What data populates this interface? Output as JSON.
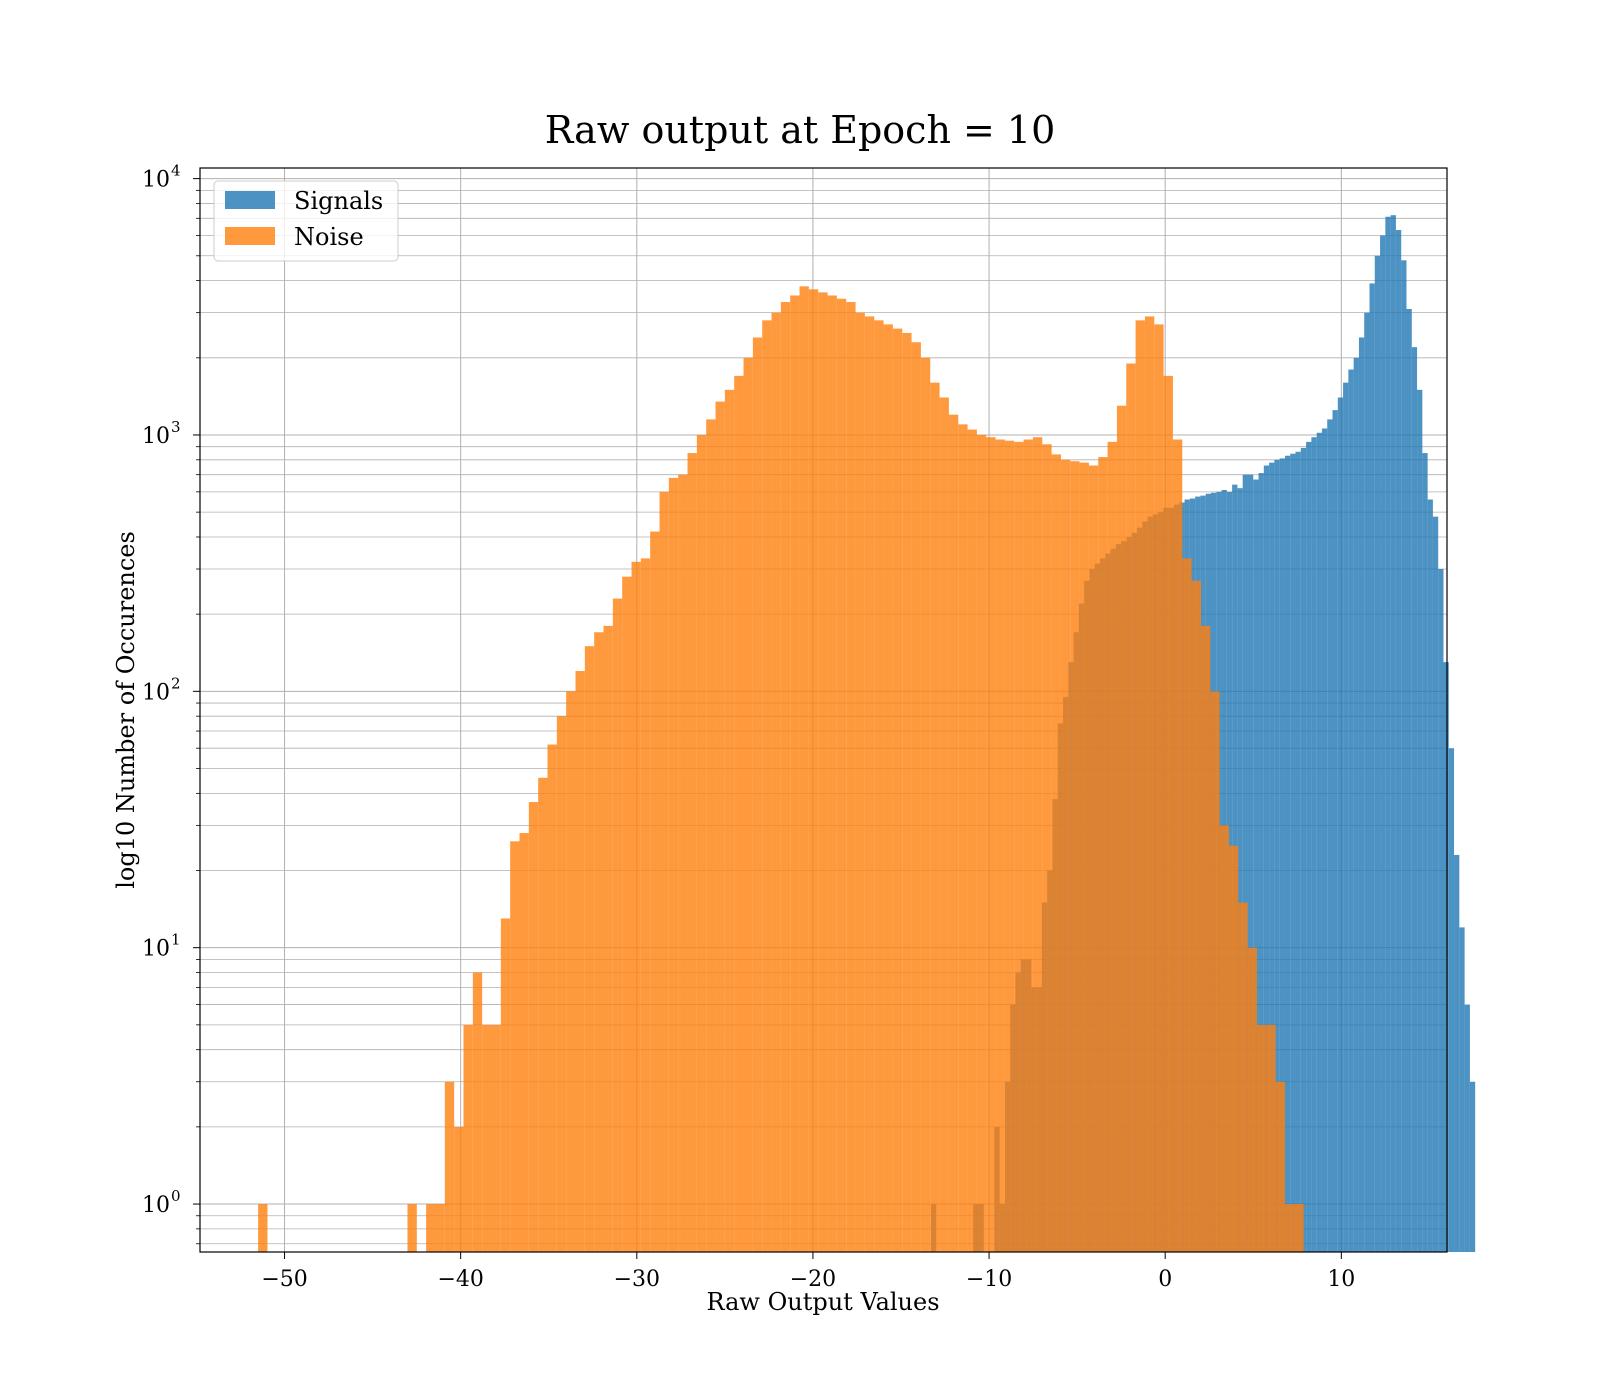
{
  "chart_data": {
    "type": "bar",
    "title": "Raw output at Epoch = 10",
    "xlabel": "Raw Output Values",
    "ylabel": "log10 Number of Occurences",
    "xlim": [
      -54.8,
      16
    ],
    "ylim": [
      0.65,
      11000
    ],
    "y_scale": "log",
    "grid": "major and minor",
    "legend_position": "top-left",
    "x_ticks": [
      -50,
      -40,
      -30,
      -20,
      -10,
      0,
      10
    ],
    "x_tick_labels": [
      "−50",
      "−40",
      "−30",
      "−20",
      "−10",
      "0",
      "10"
    ],
    "y_ticks": [
      {
        "value": 1,
        "base": "10",
        "exp": "0"
      },
      {
        "value": 10,
        "base": "10",
        "exp": "1"
      },
      {
        "value": 100,
        "base": "10",
        "exp": "2"
      },
      {
        "value": 1000,
        "base": "10",
        "exp": "3"
      },
      {
        "value": 10000,
        "base": "10",
        "exp": "4"
      }
    ],
    "series": [
      {
        "name": "Signals",
        "color": "#1f77b4",
        "opacity": 0.8,
        "bin_start": -13.3,
        "bin_width": 0.3,
        "values": [
          1,
          0,
          0,
          0,
          0,
          0,
          0,
          0,
          1,
          1,
          0,
          0,
          2,
          1,
          3,
          6,
          8,
          9,
          9,
          7,
          7,
          15,
          20,
          38,
          75,
          95,
          130,
          170,
          220,
          270,
          300,
          315,
          330,
          345,
          360,
          375,
          385,
          400,
          415,
          435,
          460,
          480,
          490,
          500,
          520,
          520,
          535,
          545,
          560,
          565,
          575,
          580,
          590,
          595,
          600,
          610,
          600,
          640,
          620,
          700,
          700,
          670,
          710,
          760,
          780,
          800,
          810,
          830,
          845,
          860,
          890,
          940,
          980,
          1020,
          1060,
          1150,
          1250,
          1400,
          1600,
          1800,
          2000,
          2400,
          3000,
          3900,
          5000,
          6000,
          7100,
          7200,
          6300,
          4800,
          3100,
          2200,
          1500,
          850,
          560,
          480,
          300,
          130,
          60,
          23,
          12,
          6,
          3
        ]
      },
      {
        "name": "Noise",
        "color": "#ff7f0e",
        "opacity": 0.8,
        "bin_start": -51.5,
        "bin_width": 0.53,
        "values": [
          1,
          0,
          0,
          0,
          0,
          0,
          0,
          0,
          0,
          0,
          0,
          0,
          0,
          0,
          0,
          0,
          1,
          0,
          1,
          1,
          3,
          2,
          5,
          8,
          5,
          5,
          13,
          26,
          28,
          37,
          46,
          62,
          80,
          100,
          120,
          150,
          170,
          180,
          230,
          280,
          320,
          330,
          420,
          600,
          680,
          700,
          850,
          1000,
          1150,
          1350,
          1500,
          1700,
          2000,
          2400,
          2800,
          3000,
          3300,
          3500,
          3800,
          3700,
          3600,
          3500,
          3400,
          3300,
          3000,
          2900,
          2800,
          2700,
          2600,
          2500,
          2300,
          2000,
          1600,
          1400,
          1200,
          1100,
          1050,
          1000,
          980,
          960,
          950,
          940,
          960,
          980,
          920,
          840,
          800,
          790,
          780,
          760,
          820,
          940,
          1300,
          1900,
          2800,
          2900,
          2700,
          1700,
          960,
          330,
          270,
          180,
          100,
          30,
          25,
          15,
          10,
          5,
          5,
          3,
          1,
          1
        ]
      }
    ]
  }
}
